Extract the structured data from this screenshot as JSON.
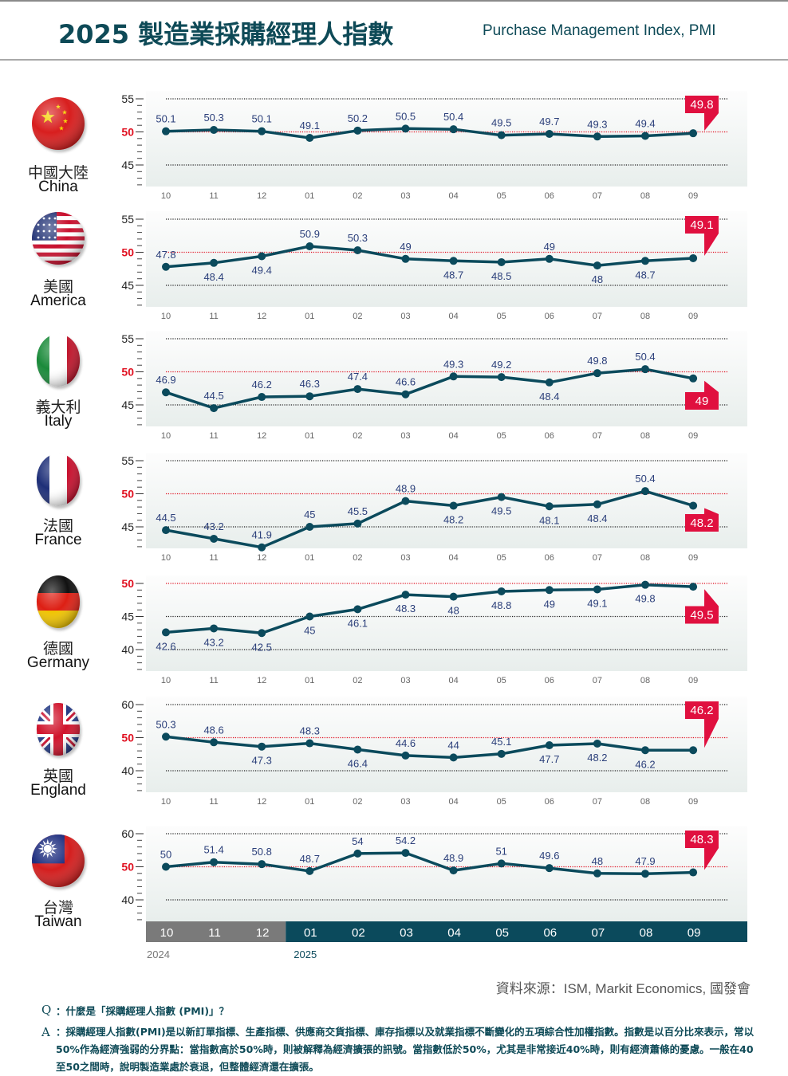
{
  "header": {
    "title": "2025 製造業採購經理人指數",
    "subtitle": "Purchase Management Index, PMI"
  },
  "colors": {
    "title": "#0e4a57",
    "line": "#0b4a5c",
    "label": "#2b3f7a",
    "callout": "#e0103f",
    "ref50": "#e01020",
    "plot_bg_top": "#fbfcfc",
    "plot_bg_bottom": "#e9efed",
    "bar_2024": "#7a7a7a",
    "bar_2025": "#0b4a5c"
  },
  "chart_data": {
    "type": "line",
    "categories": [
      "10",
      "11",
      "12",
      "01",
      "02",
      "03",
      "04",
      "05",
      "06",
      "07",
      "08",
      "09"
    ],
    "year_labels": [
      {
        "label": "2024",
        "start_category": "10"
      },
      {
        "label": "2025",
        "start_category": "01"
      }
    ],
    "reference_line": 50,
    "panels": [
      {
        "name_zh": "中國大陸",
        "name_en": "China",
        "flag": "china-flag",
        "yticks": [
          55,
          50,
          45
        ],
        "ylim": [
          40.5,
          56
        ],
        "values": [
          50.1,
          50.3,
          50.1,
          49.1,
          50.2,
          50.5,
          50.4,
          49.5,
          49.7,
          49.3,
          49.4,
          49.8
        ],
        "label_pos": [
          "above",
          "above",
          "above",
          "above",
          "above",
          "above",
          "above",
          "above",
          "above",
          "above",
          "above",
          "callout-up"
        ],
        "latest": "49.8"
      },
      {
        "name_zh": "美國",
        "name_en": "America",
        "flag": "usa-flag",
        "yticks": [
          55,
          50,
          45
        ],
        "ylim": [
          41.5,
          56
        ],
        "values": [
          47.8,
          48.4,
          49.4,
          50.9,
          50.3,
          49,
          48.7,
          48.5,
          49,
          48,
          48.7,
          49.1
        ],
        "label_pos": [
          "above",
          "below",
          "below",
          "above",
          "above",
          "above",
          "below",
          "below",
          "above",
          "below",
          "below",
          "callout-up"
        ],
        "latest": "49.1"
      },
      {
        "name_zh": "義大利",
        "name_en": "Italy",
        "flag": "italy-flag",
        "yticks": [
          55,
          50,
          45
        ],
        "ylim": [
          41.5,
          56
        ],
        "values": [
          46.9,
          44.5,
          46.2,
          46.3,
          47.4,
          46.6,
          49.3,
          49.2,
          48.4,
          49.8,
          50.4,
          49
        ],
        "label_pos": [
          "above",
          "above",
          "above",
          "above",
          "above",
          "above",
          "above",
          "above",
          "below",
          "above",
          "above",
          "callout-down"
        ],
        "latest": "49"
      },
      {
        "name_zh": "法國",
        "name_en": "France",
        "flag": "france-flag",
        "yticks": [
          55,
          50,
          45
        ],
        "ylim": [
          41.5,
          56
        ],
        "values": [
          44.5,
          43.2,
          41.9,
          45,
          45.5,
          48.9,
          48.2,
          49.5,
          48.1,
          48.4,
          50.4,
          48.2
        ],
        "label_pos": [
          "above",
          "above",
          "above",
          "above",
          "above",
          "above",
          "below",
          "below",
          "below",
          "below",
          "above",
          "callout-down"
        ],
        "latest": "48.2"
      },
      {
        "name_zh": "德國",
        "name_en": "Germany",
        "flag": "germany-flag",
        "yticks": [
          50,
          45,
          40
        ],
        "ylim": [
          36.5,
          51
        ],
        "values": [
          42.6,
          43.2,
          42.5,
          45,
          46.1,
          48.3,
          48,
          48.8,
          49,
          49.1,
          49.8,
          49.5
        ],
        "label_pos": [
          "below",
          "below",
          "below",
          "below",
          "below",
          "below",
          "below",
          "below",
          "below",
          "below",
          "below",
          "callout-down"
        ],
        "latest": "49.5"
      },
      {
        "name_zh": "英國",
        "name_en": "England",
        "flag": "uk-flag",
        "yticks": [
          60,
          50,
          40
        ],
        "ylim": [
          33,
          62
        ],
        "values": [
          50.3,
          48.6,
          47.3,
          48.3,
          46.4,
          44.6,
          44,
          45.1,
          47.7,
          48.2,
          46.2,
          46.2
        ],
        "label_pos": [
          "above",
          "above",
          "below",
          "above",
          "below",
          "above",
          "above",
          "above",
          "below",
          "below",
          "below",
          "callout-up"
        ],
        "latest": "46.2"
      },
      {
        "name_zh": "台灣",
        "name_en": "Taiwan",
        "flag": "taiwan-flag",
        "yticks": [
          60,
          50,
          40
        ],
        "ylim": [
          33,
          62
        ],
        "values": [
          50,
          51.4,
          50.8,
          48.7,
          54,
          54.2,
          48.9,
          51,
          49.6,
          48,
          47.9,
          48.3
        ],
        "label_pos": [
          "above",
          "above",
          "above",
          "above",
          "above",
          "above",
          "above",
          "above",
          "above",
          "above",
          "above",
          "callout-up"
        ],
        "latest": "48.3"
      }
    ]
  },
  "footer": {
    "source": "資料來源：ISM, Markit Economics, 國發會",
    "q_mark": "Q",
    "q_text": "：什麼是「採購經理人指數 (PMI)」？",
    "a_mark": "A",
    "a_text": "：採購經理人指數(PMI)是以新訂單指標、生產指標、供應商交貨指標、庫存指標以及就業指標不斷變化的五項綜合性加權指數。指數是以百分比來表示，常以50%作為經濟強弱的分界點：當指數高於50%時，則被解釋為經濟擴張的訊號。當指數低於50%，尤其是非常接近40%時，則有經濟蕭條的憂慮。一般在40至50之間時，說明製造業處於衰退，但整體經濟還在擴張。"
  }
}
